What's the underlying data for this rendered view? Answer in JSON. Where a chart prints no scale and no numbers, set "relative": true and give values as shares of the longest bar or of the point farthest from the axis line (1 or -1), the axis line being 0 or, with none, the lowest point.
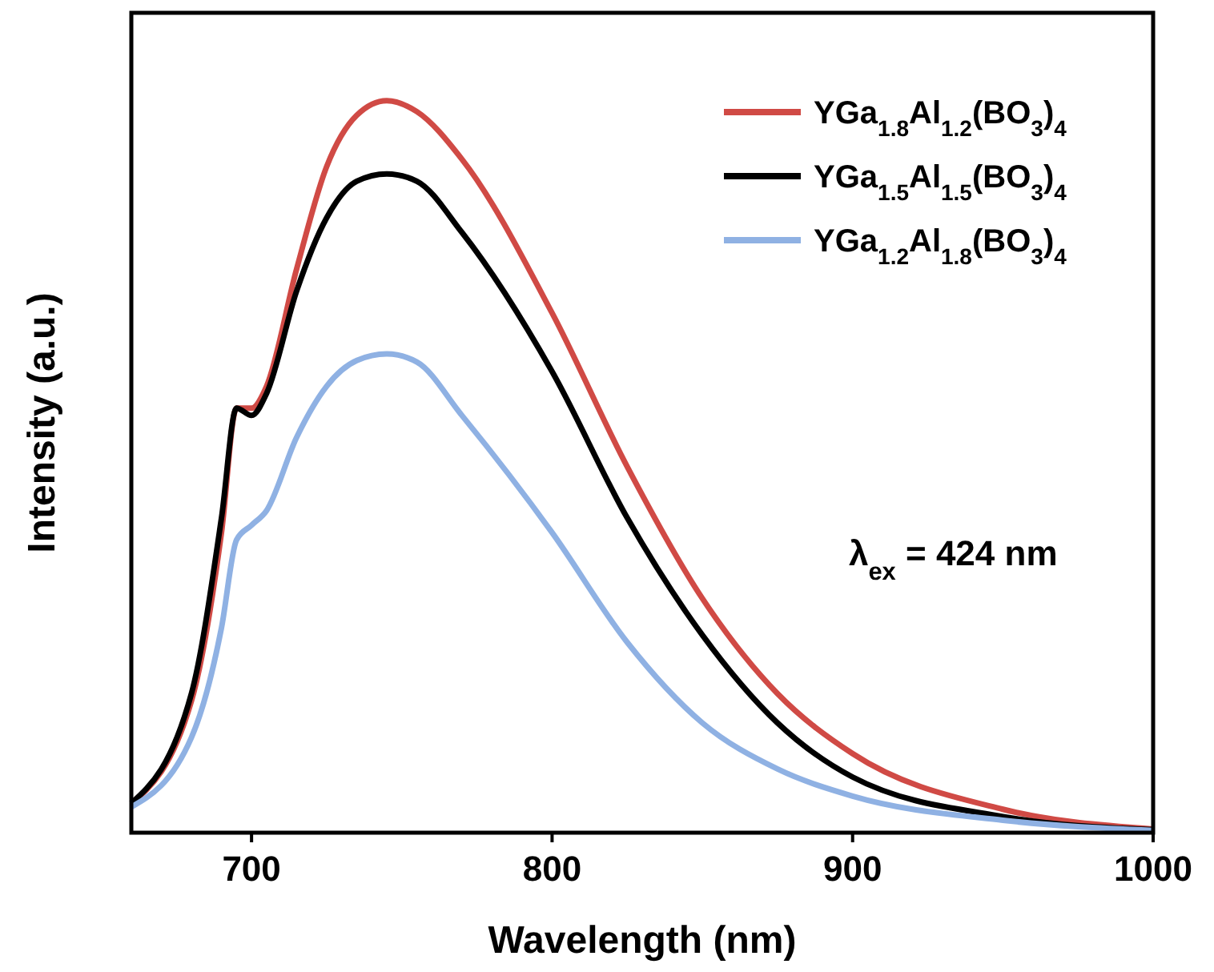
{
  "chart_data": {
    "type": "line",
    "relative": true,
    "xlabel": "Wavelength (nm)",
    "ylabel": "Intensity (a.u.)",
    "xlim": [
      660,
      1000
    ],
    "xticks": [
      700,
      800,
      900,
      1000
    ],
    "tick_labels": "x",
    "legend": "top right",
    "line_style": "solid",
    "grid": false,
    "x": [
      660,
      680,
      690,
      695,
      700,
      705,
      715,
      725,
      735,
      745,
      755,
      770,
      800,
      825,
      850,
      875,
      900,
      950,
      1000
    ],
    "series": [
      {
        "name": "YGa$_{1.8}$Al$_{1.2}$(BO$_{3}$)$_{4}$",
        "color": "#d04a45",
        "values": [
          0.04,
          0.18,
          0.41,
          0.58,
          0.58,
          0.61,
          0.77,
          0.91,
          0.98,
          1.0,
          0.985,
          0.92,
          0.71,
          0.5,
          0.32,
          0.19,
          0.108,
          0.032,
          0.005
        ]
      },
      {
        "name": "YGa$_{1.5}$Al$_{1.5}$(BO$_{3}$)$_{4}$",
        "color": "#000000",
        "values": [
          0.04,
          0.19,
          0.43,
          0.58,
          0.57,
          0.6,
          0.74,
          0.84,
          0.89,
          0.9,
          0.89,
          0.82,
          0.63,
          0.43,
          0.27,
          0.15,
          0.076,
          0.022,
          0.004
        ]
      },
      {
        "name": "YGa$_{1.2}$Al$_{1.8}$(BO$_{3}$)$_{4}$",
        "color": "#8fb1e3",
        "values": [
          0.035,
          0.13,
          0.28,
          0.4,
          0.42,
          0.44,
          0.54,
          0.61,
          0.645,
          0.654,
          0.643,
          0.57,
          0.41,
          0.26,
          0.15,
          0.087,
          0.05,
          0.017,
          0.003
        ]
      }
    ],
    "annotations": [
      "λ$_{ex}$ = 424 nm"
    ]
  }
}
